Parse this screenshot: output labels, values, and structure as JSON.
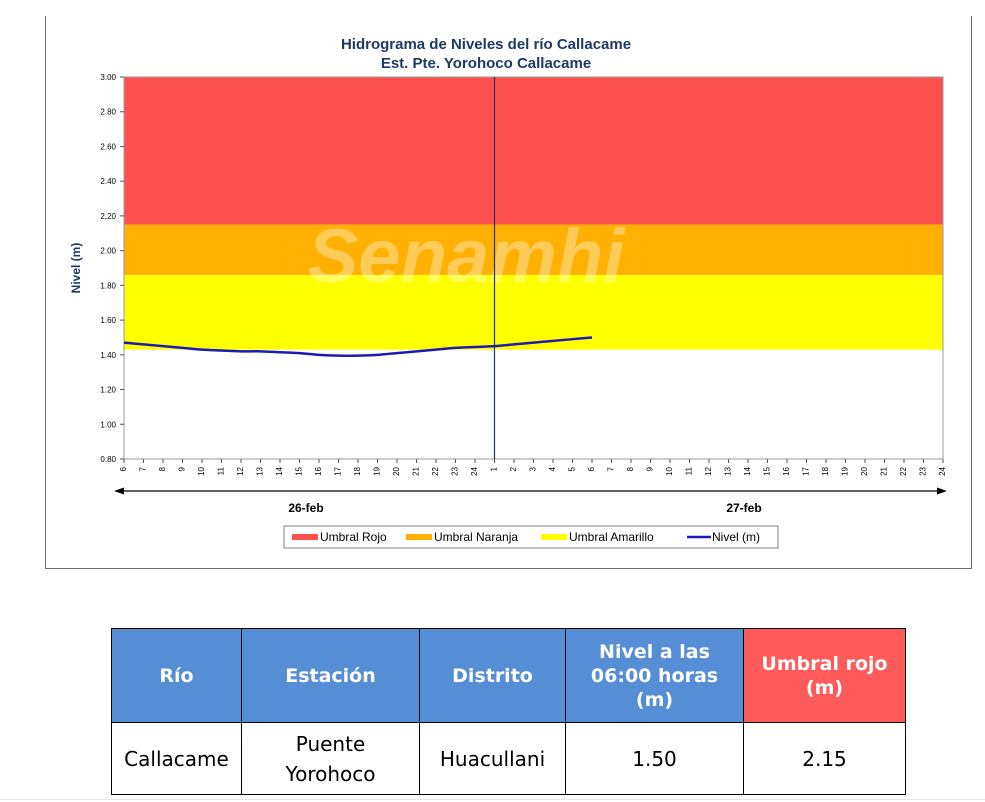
{
  "chart_data": {
    "type": "line",
    "title": "Hidrograma de Niveles del río Callacame",
    "subtitle": "Est. Pte. Yorohoco Callacame",
    "ylabel": "Nivel (m)",
    "watermark": "Senamhi",
    "ylim": [
      0.8,
      3.0
    ],
    "yticks": [
      "0.80",
      "1.00",
      "1.20",
      "1.40",
      "1.60",
      "1.80",
      "2.00",
      "2.20",
      "2.40",
      "2.60",
      "2.80",
      "3.00"
    ],
    "x_ticks": [
      "6",
      "7",
      "8",
      "9",
      "10",
      "11",
      "12",
      "13",
      "14",
      "15",
      "16",
      "17",
      "18",
      "19",
      "20",
      "21",
      "22",
      "23",
      "24",
      "1",
      "2",
      "3",
      "4",
      "5",
      "6",
      "7",
      "8",
      "9",
      "10",
      "11",
      "12",
      "13",
      "14",
      "15",
      "16",
      "17",
      "18",
      "19",
      "20",
      "21",
      "22",
      "23",
      "24"
    ],
    "day_labels": [
      "26-feb",
      "27-feb"
    ],
    "thresholds": [
      {
        "name": "Umbral Rojo",
        "from": 2.15,
        "to": 3.0,
        "color": "#ff5050"
      },
      {
        "name": "Umbral Naranja",
        "from": 1.86,
        "to": 2.15,
        "color": "#ffb000"
      },
      {
        "name": "Umbral Amarillo",
        "from": 1.43,
        "to": 1.86,
        "color": "#ffff00"
      }
    ],
    "series": [
      {
        "name": "Nivel (m)",
        "color": "#1c1cb4",
        "values": [
          1.47,
          1.46,
          1.45,
          1.44,
          1.43,
          1.425,
          1.42,
          1.42,
          1.415,
          1.41,
          1.4,
          1.395,
          1.395,
          1.4,
          1.41,
          1.42,
          1.43,
          1.44,
          1.445,
          1.45,
          1.46,
          1.47,
          1.48,
          1.49,
          1.5
        ]
      }
    ],
    "legend_position": "bottom",
    "divider_at": "1"
  },
  "legend": [
    {
      "label": "Umbral Rojo",
      "color": "#ff5050",
      "kind": "box"
    },
    {
      "label": "Umbral Naranja",
      "color": "#ffb000",
      "kind": "box"
    },
    {
      "label": "Umbral Amarillo",
      "color": "#ffff00",
      "kind": "box"
    },
    {
      "label": "Nivel (m)",
      "color": "#1c1cb4",
      "kind": "line"
    }
  ],
  "table": {
    "headers": [
      "Río",
      "Estación",
      "Distrito",
      "Nivel a las 06:00 horas (m)",
      "Umbral rojo (m)"
    ],
    "rows": [
      [
        "Callacame",
        "Puente Yorohoco",
        "Huacullani",
        "1.50",
        "2.15"
      ]
    ]
  }
}
